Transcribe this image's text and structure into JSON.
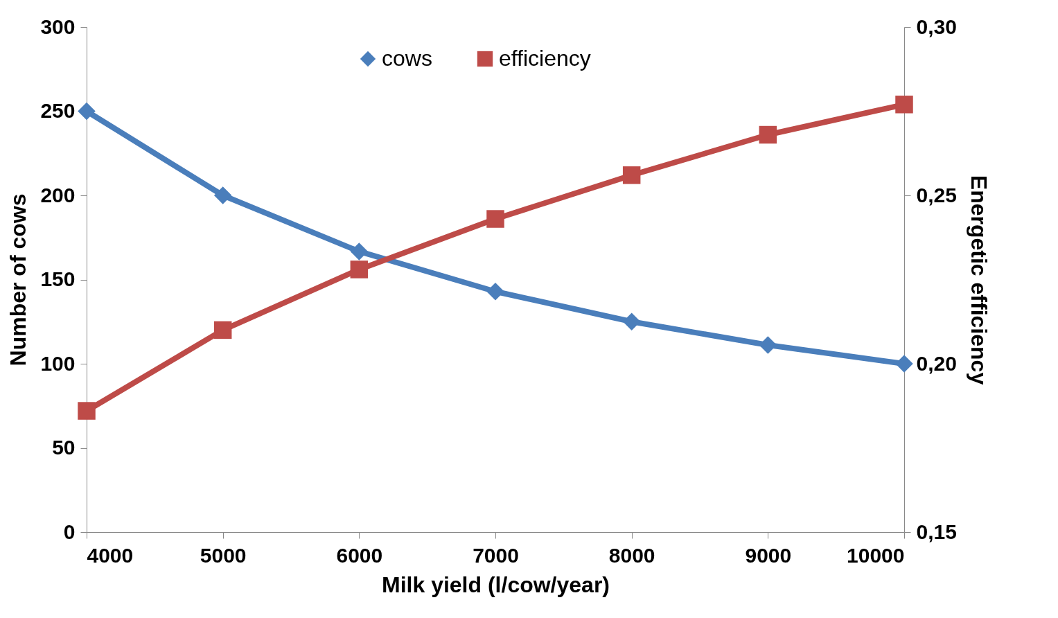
{
  "chart_data": {
    "type": "line",
    "xlabel": "Milk yield (l/cow/year)",
    "ylabel": "Number of cows",
    "y2label": "Energetic efficiency",
    "x": [
      4000,
      5000,
      6000,
      7000,
      8000,
      9000,
      10000
    ],
    "series": [
      {
        "name": "cows",
        "color": "#4a7ebb",
        "marker": "diamond",
        "values": [
          250,
          200,
          166.7,
          142.9,
          125,
          111.1,
          100
        ]
      },
      {
        "name": "efficiency",
        "color": "#be4b48",
        "marker": "square",
        "axis": "y2",
        "values": [
          0.186,
          0.21,
          0.228,
          0.243,
          0.256,
          0.268,
          0.277
        ]
      }
    ],
    "xlim": [
      4000,
      10000
    ],
    "xticks": [
      4000,
      5000,
      6000,
      7000,
      8000,
      9000,
      10000
    ],
    "ylim": [
      0,
      300
    ],
    "yticks": [
      0,
      50,
      100,
      150,
      200,
      250,
      300
    ],
    "y2lim": [
      0.15,
      0.3
    ],
    "y2ticks": [
      {
        "value": 0.15,
        "label": "0,15"
      },
      {
        "value": 0.2,
        "label": "0,20"
      },
      {
        "value": 0.25,
        "label": "0,25"
      },
      {
        "value": 0.3,
        "label": "0,30"
      }
    ],
    "legend": "top",
    "line_style": "solid"
  }
}
